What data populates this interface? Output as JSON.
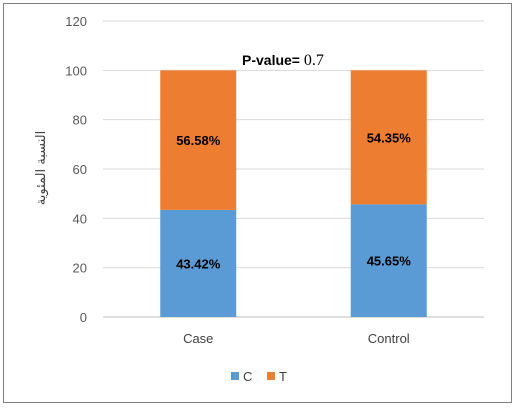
{
  "chart_data": {
    "type": "bar",
    "stacked": true,
    "categories": [
      "Case",
      "Control"
    ],
    "series": [
      {
        "name": "C",
        "values": [
          43.42,
          45.65
        ],
        "labels": [
          "43.42%",
          "45.65%"
        ],
        "color": "#5b9bd5"
      },
      {
        "name": "T",
        "values": [
          56.58,
          54.35
        ],
        "labels": [
          "56.58%",
          "54.35%"
        ],
        "color": "#ed7d31"
      }
    ],
    "ylabel": "النسبة المئوية",
    "ylim": [
      0,
      120
    ],
    "yticks": [
      0,
      20,
      40,
      60,
      80,
      100,
      120
    ],
    "grid": true,
    "legend_position": "bottom",
    "annotation": {
      "text": "P-value= ",
      "value": "0.7"
    }
  }
}
